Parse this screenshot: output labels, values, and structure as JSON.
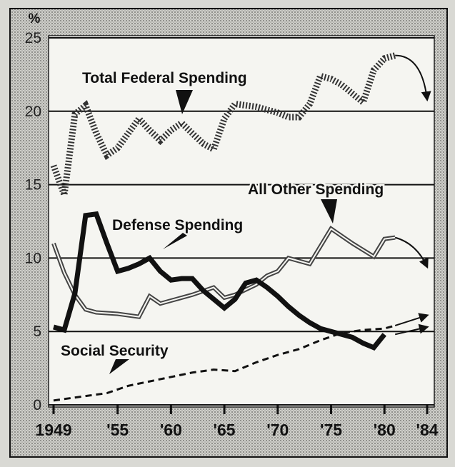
{
  "chart_data": {
    "type": "line",
    "unit_label": "%",
    "x_tick_labels": [
      "1949",
      "'55",
      "'60",
      "'65",
      "'70",
      "'75",
      "'80",
      "'84"
    ],
    "x_ticks": [
      1949,
      1955,
      1960,
      1965,
      1970,
      1975,
      1980,
      1984
    ],
    "y_ticks": [
      0,
      5,
      10,
      15,
      20,
      25
    ],
    "xlim": [
      1949,
      1984
    ],
    "ylim": [
      0,
      25
    ],
    "grid": "horizontal",
    "series": [
      {
        "name": "Total Federal Spending",
        "style": "zigzag-dotted",
        "color": "#444444",
        "x": [
          1949,
          1950,
          1951,
          1952,
          1953,
          1954,
          1955,
          1956,
          1957,
          1958,
          1959,
          1960,
          1961,
          1962,
          1963,
          1964,
          1965,
          1966,
          1967,
          1968,
          1969,
          1970,
          1971,
          1972,
          1973,
          1974,
          1975,
          1976,
          1977,
          1978,
          1979,
          1980,
          1981
        ],
        "values": [
          16.3,
          14.3,
          19.8,
          20.4,
          18.5,
          17.0,
          17.5,
          18.5,
          19.5,
          18.7,
          18.0,
          18.7,
          19.2,
          18.5,
          17.8,
          17.4,
          19.5,
          20.5,
          20.4,
          20.3,
          20.1,
          19.9,
          19.6,
          19.6,
          20.5,
          22.4,
          22.2,
          21.8,
          21.2,
          20.6,
          22.8,
          23.6,
          23.8
        ],
        "projected_to": 1984,
        "projected_value": 20.8
      },
      {
        "name": "All Other Spending",
        "style": "double-line",
        "color": "#555555",
        "x": [
          1949,
          1950,
          1951,
          1952,
          1953,
          1955,
          1957,
          1958,
          1959,
          1960,
          1962,
          1964,
          1965,
          1966,
          1968,
          1969,
          1970,
          1971,
          1972,
          1973,
          1975,
          1977,
          1979,
          1980,
          1981
        ],
        "values": [
          11.0,
          9.0,
          7.5,
          6.5,
          6.3,
          6.2,
          6.0,
          7.4,
          6.9,
          7.1,
          7.5,
          8.0,
          7.3,
          7.5,
          8.2,
          8.8,
          9.1,
          10.0,
          9.8,
          9.6,
          12.0,
          11.0,
          10.1,
          11.3,
          11.4
        ],
        "projected_to": 1984,
        "projected_value": 9.4
      },
      {
        "name": "Defense Spending",
        "style": "thick-solid",
        "color": "#111111",
        "x": [
          1949,
          1950,
          1951,
          1952,
          1953,
          1954,
          1955,
          1956,
          1957,
          1958,
          1959,
          1960,
          1961,
          1962,
          1963,
          1964,
          1965,
          1966,
          1967,
          1968,
          1969,
          1970,
          1971,
          1972,
          1973,
          1974,
          1975,
          1976,
          1977,
          1978,
          1979,
          1980
        ],
        "values": [
          5.3,
          5.1,
          7.6,
          12.9,
          13.0,
          11.0,
          9.1,
          9.3,
          9.6,
          10.0,
          9.1,
          8.5,
          8.6,
          8.6,
          7.8,
          7.2,
          6.6,
          7.2,
          8.3,
          8.5,
          8.0,
          7.4,
          6.7,
          6.1,
          5.6,
          5.2,
          5.0,
          4.8,
          4.6,
          4.2,
          3.9,
          4.8
        ]
      },
      {
        "name": "Social Security",
        "style": "dashed",
        "color": "#111111",
        "x": [
          1949,
          1950,
          1952,
          1954,
          1956,
          1958,
          1960,
          1962,
          1964,
          1966,
          1968,
          1970,
          1972,
          1974,
          1976,
          1978,
          1980,
          1981
        ],
        "values": [
          0.3,
          0.4,
          0.6,
          0.8,
          1.3,
          1.6,
          1.9,
          2.2,
          2.4,
          2.3,
          2.9,
          3.4,
          3.8,
          4.4,
          4.9,
          5.1,
          5.2,
          5.4
        ],
        "projected_to": 1984,
        "projected_value": 6.1
      }
    ]
  }
}
